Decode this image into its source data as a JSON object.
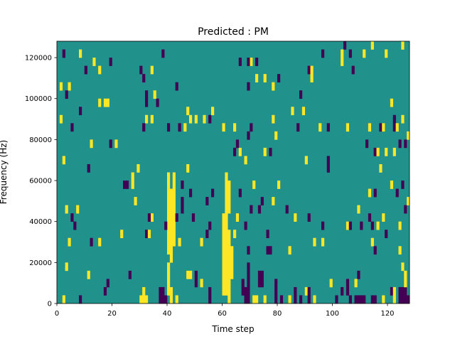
{
  "chart_data": {
    "type": "heatmap",
    "title": "Predicted : PM",
    "xlabel": "Time step",
    "ylabel": "Frequency (Hz)",
    "xlim": [
      0,
      128
    ],
    "ylim": [
      0,
      128000
    ],
    "xticks": [
      0,
      20,
      40,
      60,
      80,
      100,
      120
    ],
    "yticks": [
      0,
      20000,
      40000,
      60000,
      80000,
      100000,
      120000
    ],
    "grid": false,
    "background_value": 1,
    "colors": {
      "0": "#440154",
      "1": "#21918c",
      "2": "#fde725"
    },
    "cells_format": [
      "time_step",
      "freq_start_hz",
      "freq_end_hz",
      "value"
    ],
    "cells": [
      [
        2,
        0,
        4000,
        2
      ],
      [
        8,
        0,
        4000,
        0
      ],
      [
        17,
        4000,
        8000,
        0
      ],
      [
        18,
        8000,
        12000,
        0
      ],
      [
        11,
        12000,
        16000,
        2
      ],
      [
        3,
        16000,
        20000,
        2
      ],
      [
        26,
        12000,
        16000,
        0
      ],
      [
        30,
        0,
        4000,
        2
      ],
      [
        31,
        0,
        8000,
        2
      ],
      [
        32,
        0,
        4000,
        2
      ],
      [
        37,
        0,
        8000,
        0
      ],
      [
        38,
        0,
        8000,
        0
      ],
      [
        39,
        0,
        4000,
        0
      ],
      [
        41,
        0,
        8000,
        2
      ],
      [
        40,
        4000,
        20000,
        2
      ],
      [
        43,
        0,
        4000,
        2
      ],
      [
        47,
        12000,
        16000,
        2
      ],
      [
        48,
        12000,
        16000,
        2
      ],
      [
        50,
        8000,
        16000,
        0
      ],
      [
        52,
        8000,
        12000,
        2
      ],
      [
        55,
        0,
        8000,
        0
      ],
      [
        60,
        4000,
        44000,
        2
      ],
      [
        61,
        4000,
        44000,
        2
      ],
      [
        62,
        0,
        36000,
        2
      ],
      [
        63,
        12000,
        28000,
        2
      ],
      [
        67,
        4000,
        12000,
        0
      ],
      [
        68,
        0,
        8000,
        0
      ],
      [
        69,
        0,
        20000,
        0
      ],
      [
        71,
        0,
        4000,
        2
      ],
      [
        72,
        0,
        4000,
        2
      ],
      [
        73,
        8000,
        16000,
        0
      ],
      [
        74,
        8000,
        16000,
        0
      ],
      [
        75,
        0,
        4000,
        2
      ],
      [
        79,
        0,
        12000,
        0
      ],
      [
        81,
        0,
        4000,
        0
      ],
      [
        84,
        0,
        4000,
        2
      ],
      [
        86,
        0,
        8000,
        0
      ],
      [
        88,
        0,
        4000,
        0
      ],
      [
        90,
        4000,
        8000,
        2
      ],
      [
        91,
        0,
        8000,
        0
      ],
      [
        93,
        0,
        4000,
        2
      ],
      [
        99,
        8000,
        12000,
        2
      ],
      [
        101,
        0,
        4000,
        0
      ],
      [
        103,
        4000,
        8000,
        0
      ],
      [
        105,
        4000,
        12000,
        0
      ],
      [
        106,
        0,
        4000,
        0
      ],
      [
        109,
        12000,
        16000,
        0
      ],
      [
        108,
        8000,
        12000,
        2
      ],
      [
        108,
        0,
        4000,
        0
      ],
      [
        109,
        0,
        4000,
        0
      ],
      [
        110,
        0,
        4000,
        0
      ],
      [
        111,
        0,
        4000,
        0
      ],
      [
        114,
        0,
        4000,
        0
      ],
      [
        115,
        0,
        4000,
        0
      ],
      [
        118,
        0,
        4000,
        2
      ],
      [
        121,
        4000,
        8000,
        0
      ],
      [
        122,
        0,
        8000,
        2
      ],
      [
        124,
        0,
        8000,
        0
      ],
      [
        125,
        0,
        8000,
        0
      ],
      [
        126,
        0,
        8000,
        0
      ],
      [
        127,
        0,
        4000,
        0
      ],
      [
        126,
        8000,
        16000,
        2
      ],
      [
        125,
        16000,
        20000,
        2
      ],
      [
        4,
        28000,
        32000,
        2
      ],
      [
        12,
        28000,
        32000,
        0
      ],
      [
        15,
        28000,
        32000,
        2
      ],
      [
        6,
        36000,
        40000,
        0
      ],
      [
        3,
        44000,
        48000,
        2
      ],
      [
        7,
        44000,
        48000,
        2
      ],
      [
        5,
        40000,
        44000,
        0
      ],
      [
        23,
        32000,
        36000,
        2
      ],
      [
        32,
        32000,
        36000,
        0
      ],
      [
        33,
        32000,
        36000,
        2
      ],
      [
        34,
        40000,
        44000,
        2
      ],
      [
        33,
        40000,
        44000,
        0
      ],
      [
        28,
        48000,
        52000,
        2
      ],
      [
        24,
        56000,
        60000,
        0
      ],
      [
        25,
        56000,
        60000,
        0
      ],
      [
        27,
        56000,
        64000,
        2
      ],
      [
        29,
        64000,
        68000,
        2
      ],
      [
        40,
        24000,
        64000,
        2
      ],
      [
        41,
        20000,
        56000,
        2
      ],
      [
        42,
        28000,
        64000,
        2
      ],
      [
        39,
        36000,
        40000,
        0
      ],
      [
        43,
        40000,
        44000,
        0
      ],
      [
        44,
        28000,
        32000,
        2
      ],
      [
        45,
        56000,
        60000,
        0
      ],
      [
        45,
        44000,
        52000,
        0
      ],
      [
        47,
        64000,
        68000,
        2
      ],
      [
        48,
        52000,
        56000,
        0
      ],
      [
        49,
        40000,
        44000,
        0
      ],
      [
        52,
        28000,
        32000,
        2
      ],
      [
        54,
        32000,
        36000,
        0
      ],
      [
        55,
        36000,
        40000,
        0
      ],
      [
        56,
        52000,
        56000,
        0
      ],
      [
        54,
        48000,
        52000,
        0
      ],
      [
        61,
        44000,
        64000,
        2
      ],
      [
        62,
        44000,
        60000,
        2
      ],
      [
        64,
        32000,
        36000,
        2
      ],
      [
        65,
        40000,
        44000,
        2
      ],
      [
        66,
        52000,
        56000,
        0
      ],
      [
        68,
        36000,
        40000,
        0
      ],
      [
        69,
        24000,
        28000,
        0
      ],
      [
        70,
        44000,
        48000,
        0
      ],
      [
        71,
        56000,
        60000,
        2
      ],
      [
        73,
        44000,
        48000,
        0
      ],
      [
        74,
        48000,
        52000,
        0
      ],
      [
        76,
        32000,
        36000,
        0
      ],
      [
        76,
        24000,
        28000,
        0
      ],
      [
        77,
        24000,
        28000,
        0
      ],
      [
        78,
        48000,
        52000,
        2
      ],
      [
        80,
        56000,
        60000,
        2
      ],
      [
        83,
        44000,
        48000,
        0
      ],
      [
        84,
        24000,
        28000,
        2
      ],
      [
        86,
        40000,
        44000,
        2
      ],
      [
        91,
        40000,
        44000,
        0
      ],
      [
        93,
        28000,
        32000,
        2
      ],
      [
        96,
        28000,
        32000,
        2
      ],
      [
        96,
        36000,
        40000,
        0
      ],
      [
        105,
        36000,
        40000,
        2
      ],
      [
        106,
        36000,
        40000,
        0
      ],
      [
        109,
        44000,
        48000,
        2
      ],
      [
        110,
        36000,
        40000,
        0
      ],
      [
        113,
        52000,
        56000,
        2
      ],
      [
        115,
        52000,
        56000,
        0
      ],
      [
        114,
        36000,
        40000,
        0
      ],
      [
        116,
        36000,
        40000,
        2
      ],
      [
        113,
        40000,
        44000,
        0
      ],
      [
        114,
        28000,
        32000,
        2
      ],
      [
        115,
        24000,
        28000,
        0
      ],
      [
        119,
        32000,
        36000,
        0
      ],
      [
        118,
        40000,
        44000,
        2
      ],
      [
        123,
        52000,
        56000,
        0
      ],
      [
        124,
        36000,
        40000,
        2
      ],
      [
        124,
        24000,
        28000,
        2
      ],
      [
        126,
        44000,
        48000,
        0
      ],
      [
        127,
        48000,
        52000,
        2
      ],
      [
        125,
        56000,
        60000,
        0
      ],
      [
        121,
        56000,
        60000,
        2
      ],
      [
        2,
        68000,
        72000,
        2
      ],
      [
        11,
        64000,
        68000,
        0
      ],
      [
        12,
        76000,
        80000,
        2
      ],
      [
        19,
        76000,
        80000,
        0
      ],
      [
        21,
        76000,
        80000,
        2
      ],
      [
        15,
        96000,
        100000,
        2
      ],
      [
        17,
        96000,
        100000,
        2
      ],
      [
        18,
        96000,
        100000,
        2
      ],
      [
        8,
        92000,
        96000,
        0
      ],
      [
        5,
        84000,
        88000,
        0
      ],
      [
        1,
        88000,
        92000,
        2
      ],
      [
        32,
        88000,
        92000,
        2
      ],
      [
        34,
        88000,
        92000,
        2
      ],
      [
        31,
        84000,
        88000,
        0
      ],
      [
        36,
        96000,
        100000,
        0
      ],
      [
        32,
        96000,
        104000,
        0
      ],
      [
        35,
        100000,
        104000,
        2
      ],
      [
        40,
        84000,
        88000,
        0
      ],
      [
        44,
        84000,
        88000,
        0
      ],
      [
        46,
        84000,
        88000,
        2
      ],
      [
        47,
        92000,
        96000,
        2
      ],
      [
        48,
        88000,
        92000,
        2
      ],
      [
        50,
        88000,
        92000,
        2
      ],
      [
        53,
        88000,
        92000,
        2
      ],
      [
        55,
        88000,
        92000,
        0
      ],
      [
        56,
        92000,
        96000,
        2
      ],
      [
        60,
        84000,
        88000,
        2
      ],
      [
        64,
        84000,
        88000,
        2
      ],
      [
        64,
        72000,
        76000,
        0
      ],
      [
        65,
        76000,
        80000,
        0
      ],
      [
        69,
        80000,
        84000,
        0
      ],
      [
        70,
        84000,
        88000,
        0
      ],
      [
        68,
        68000,
        72000,
        2
      ],
      [
        66,
        72000,
        76000,
        2
      ],
      [
        75,
        72000,
        76000,
        2
      ],
      [
        77,
        72000,
        76000,
        0
      ],
      [
        78,
        88000,
        92000,
        2
      ],
      [
        79,
        80000,
        84000,
        2
      ],
      [
        85,
        92000,
        96000,
        2
      ],
      [
        87,
        84000,
        88000,
        0
      ],
      [
        89,
        92000,
        96000,
        2
      ],
      [
        88,
        100000,
        104000,
        0
      ],
      [
        90,
        68000,
        72000,
        2
      ],
      [
        95,
        84000,
        88000,
        2
      ],
      [
        98,
        64000,
        72000,
        0
      ],
      [
        98,
        84000,
        88000,
        0
      ],
      [
        105,
        84000,
        88000,
        2
      ],
      [
        112,
        76000,
        80000,
        0
      ],
      [
        113,
        84000,
        88000,
        2
      ],
      [
        115,
        72000,
        76000,
        0
      ],
      [
        116,
        72000,
        76000,
        2
      ],
      [
        117,
        84000,
        88000,
        0
      ],
      [
        118,
        84000,
        88000,
        2
      ],
      [
        117,
        64000,
        68000,
        2
      ],
      [
        119,
        72000,
        76000,
        2
      ],
      [
        121,
        96000,
        100000,
        2
      ],
      [
        122,
        84000,
        92000,
        0
      ],
      [
        123,
        84000,
        88000,
        2
      ],
      [
        124,
        76000,
        80000,
        0
      ],
      [
        125,
        88000,
        92000,
        2
      ],
      [
        127,
        80000,
        84000,
        2
      ],
      [
        126,
        76000,
        80000,
        0
      ],
      [
        122,
        72000,
        76000,
        2
      ],
      [
        104,
        124000,
        128000,
        0
      ],
      [
        103,
        116000,
        124000,
        2
      ],
      [
        111,
        120000,
        124000,
        2
      ],
      [
        114,
        124000,
        128000,
        2
      ],
      [
        119,
        120000,
        124000,
        2
      ],
      [
        125,
        124000,
        128000,
        2
      ],
      [
        106,
        120000,
        124000,
        0
      ],
      [
        107,
        112000,
        116000,
        0
      ],
      [
        96,
        120000,
        124000,
        0
      ],
      [
        91,
        112000,
        116000,
        0
      ],
      [
        92,
        108000,
        116000,
        2
      ],
      [
        70,
        116000,
        120000,
        2
      ],
      [
        66,
        116000,
        120000,
        0
      ],
      [
        69,
        116000,
        120000,
        0
      ],
      [
        72,
        116000,
        120000,
        0
      ],
      [
        72,
        108000,
        112000,
        2
      ],
      [
        75,
        108000,
        112000,
        2
      ],
      [
        69,
        104000,
        108000,
        0
      ],
      [
        78,
        104000,
        108000,
        2
      ],
      [
        80,
        108000,
        112000,
        0
      ],
      [
        2,
        120000,
        124000,
        0
      ],
      [
        8,
        120000,
        124000,
        2
      ],
      [
        13,
        116000,
        120000,
        2
      ],
      [
        10,
        112000,
        116000,
        0
      ],
      [
        15,
        112000,
        116000,
        2
      ],
      [
        19,
        116000,
        120000,
        0
      ],
      [
        30,
        112000,
        116000,
        0
      ],
      [
        31,
        108000,
        112000,
        0
      ],
      [
        34,
        112000,
        116000,
        2
      ],
      [
        38,
        120000,
        124000,
        0
      ],
      [
        43,
        104000,
        108000,
        0
      ],
      [
        1,
        104000,
        108000,
        2
      ],
      [
        4,
        104000,
        108000,
        2
      ],
      [
        3,
        100000,
        104000,
        0
      ]
    ]
  }
}
